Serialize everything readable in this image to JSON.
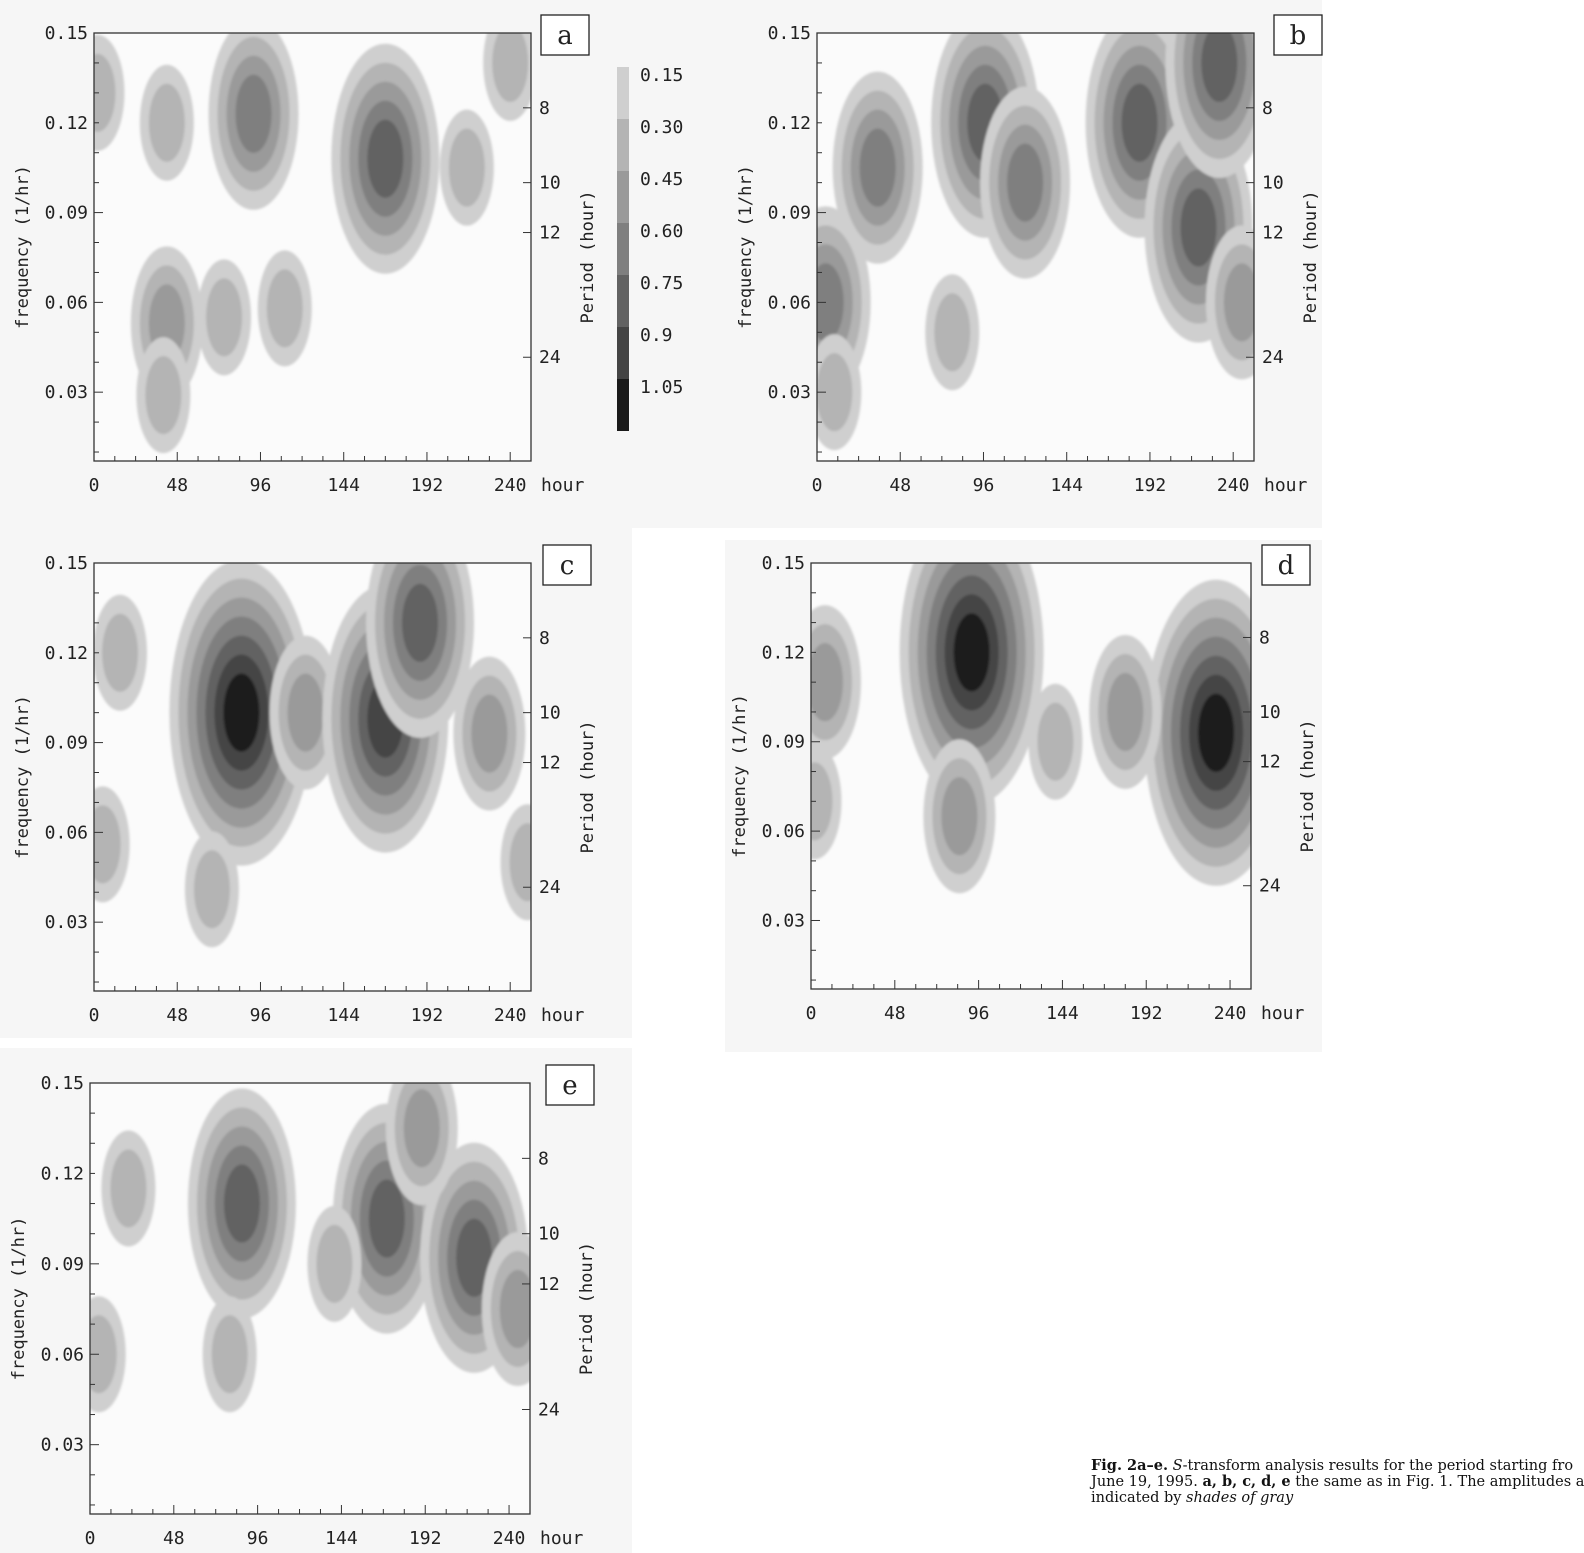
{
  "figure": {
    "shared": {
      "xlabel": "hour",
      "ylabel": "frequency (1/hr)",
      "y2label": "Period (hour)",
      "x_ticks": [
        "0",
        "48",
        "96",
        "144",
        "192",
        "240"
      ],
      "y_ticks": [
        "0.15",
        "0.12",
        "0.09",
        "0.06",
        "0.03"
      ],
      "y2_ticks": [
        "8",
        "10",
        "12",
        "24"
      ]
    },
    "colorbar": {
      "levels": [
        "0.15",
        "0.30",
        "0.45",
        "0.60",
        "0.75",
        "0.9",
        "1.05"
      ],
      "colors": [
        "#cfcfcf",
        "#b4b4b4",
        "#9a9a9a",
        "#7f7f7f",
        "#626262",
        "#444444",
        "#1a1a1a"
      ]
    },
    "caption": {
      "line1_bold": "Fig. 2a–e.",
      "line1_italic": "S",
      "line1_rest": "-transform analysis results for the period starting fro",
      "line2_bold": "a, b, c, d, e",
      "line2_before": "June 19, 1995.",
      "line2_rest": "the same as in Fig. 1. The amplitudes a",
      "line3_before": "indicated by",
      "line3_italic": "shades of gray"
    }
  },
  "chart_data": [
    {
      "type": "heatmap",
      "panel": "a",
      "title": "",
      "xlabel": "hour",
      "ylabel": "frequency (1/hr)",
      "y2label": "Period (hour)",
      "xlim": [
        0,
        252
      ],
      "ylim": [
        0.007,
        0.15
      ],
      "blobs": [
        {
          "t": 92,
          "f": 0.123,
          "level": 3
        },
        {
          "t": 168,
          "f": 0.108,
          "level": 4
        },
        {
          "t": 42,
          "f": 0.053,
          "level": 2
        },
        {
          "t": 75,
          "f": 0.055,
          "level": 1
        },
        {
          "t": 110,
          "f": 0.058,
          "level": 1
        },
        {
          "t": 42,
          "f": 0.12,
          "level": 1
        },
        {
          "t": 40,
          "f": 0.029,
          "level": 1
        },
        {
          "t": 2,
          "f": 0.13,
          "level": 1
        },
        {
          "t": 215,
          "f": 0.105,
          "level": 1
        },
        {
          "t": 240,
          "f": 0.14,
          "level": 1
        }
      ]
    },
    {
      "type": "heatmap",
      "panel": "b",
      "title": "",
      "xlabel": "hour",
      "ylabel": "frequency (1/hr)",
      "y2label": "Period (hour)",
      "xlim": [
        0,
        252
      ],
      "ylim": [
        0.007,
        0.15
      ],
      "blobs": [
        {
          "t": 35,
          "f": 0.105,
          "level": 3
        },
        {
          "t": 97,
          "f": 0.12,
          "level": 4
        },
        {
          "t": 120,
          "f": 0.1,
          "level": 3
        },
        {
          "t": 186,
          "f": 0.12,
          "level": 4
        },
        {
          "t": 220,
          "f": 0.085,
          "level": 4
        },
        {
          "t": 232,
          "f": 0.14,
          "level": 4
        },
        {
          "t": 5,
          "f": 0.06,
          "level": 3
        },
        {
          "t": 78,
          "f": 0.05,
          "level": 1
        },
        {
          "t": 10,
          "f": 0.03,
          "level": 1
        },
        {
          "t": 245,
          "f": 0.06,
          "level": 2
        }
      ]
    },
    {
      "type": "heatmap",
      "panel": "c",
      "title": "",
      "xlabel": "hour",
      "ylabel": "frequency (1/hr)",
      "y2label": "Period (hour)",
      "xlim": [
        0,
        252
      ],
      "ylim": [
        0.007,
        0.15
      ],
      "blobs": [
        {
          "t": 85,
          "f": 0.1,
          "level": 6
        },
        {
          "t": 122,
          "f": 0.1,
          "level": 2
        },
        {
          "t": 168,
          "f": 0.098,
          "level": 5
        },
        {
          "t": 188,
          "f": 0.13,
          "level": 4
        },
        {
          "t": 228,
          "f": 0.093,
          "level": 2
        },
        {
          "t": 15,
          "f": 0.12,
          "level": 1
        },
        {
          "t": 5,
          "f": 0.056,
          "level": 1
        },
        {
          "t": 68,
          "f": 0.041,
          "level": 1
        },
        {
          "t": 250,
          "f": 0.05,
          "level": 1
        }
      ]
    },
    {
      "type": "heatmap",
      "panel": "d",
      "title": "",
      "xlabel": "hour",
      "ylabel": "frequency (1/hr)",
      "y2label": "Period (hour)",
      "xlim": [
        0,
        252
      ],
      "ylim": [
        0.007,
        0.15
      ],
      "blobs": [
        {
          "t": 92,
          "f": 0.12,
          "level": 6
        },
        {
          "t": 232,
          "f": 0.093,
          "level": 6
        },
        {
          "t": 180,
          "f": 0.1,
          "level": 2
        },
        {
          "t": 8,
          "f": 0.11,
          "level": 2
        },
        {
          "t": 85,
          "f": 0.065,
          "level": 2
        },
        {
          "t": 140,
          "f": 0.09,
          "level": 1
        },
        {
          "t": 2,
          "f": 0.07,
          "level": 1
        }
      ]
    },
    {
      "type": "heatmap",
      "panel": "e",
      "title": "",
      "xlabel": "hour",
      "ylabel": "frequency (1/hr)",
      "y2label": "Period (hour)",
      "xlim": [
        0,
        252
      ],
      "ylim": [
        0.007,
        0.15
      ],
      "blobs": [
        {
          "t": 87,
          "f": 0.11,
          "level": 4
        },
        {
          "t": 170,
          "f": 0.105,
          "level": 4
        },
        {
          "t": 220,
          "f": 0.092,
          "level": 4
        },
        {
          "t": 22,
          "f": 0.115,
          "level": 1
        },
        {
          "t": 5,
          "f": 0.06,
          "level": 1
        },
        {
          "t": 80,
          "f": 0.06,
          "level": 1
        },
        {
          "t": 140,
          "f": 0.09,
          "level": 1
        },
        {
          "t": 245,
          "f": 0.075,
          "level": 2
        },
        {
          "t": 190,
          "f": 0.135,
          "level": 2
        }
      ]
    }
  ]
}
